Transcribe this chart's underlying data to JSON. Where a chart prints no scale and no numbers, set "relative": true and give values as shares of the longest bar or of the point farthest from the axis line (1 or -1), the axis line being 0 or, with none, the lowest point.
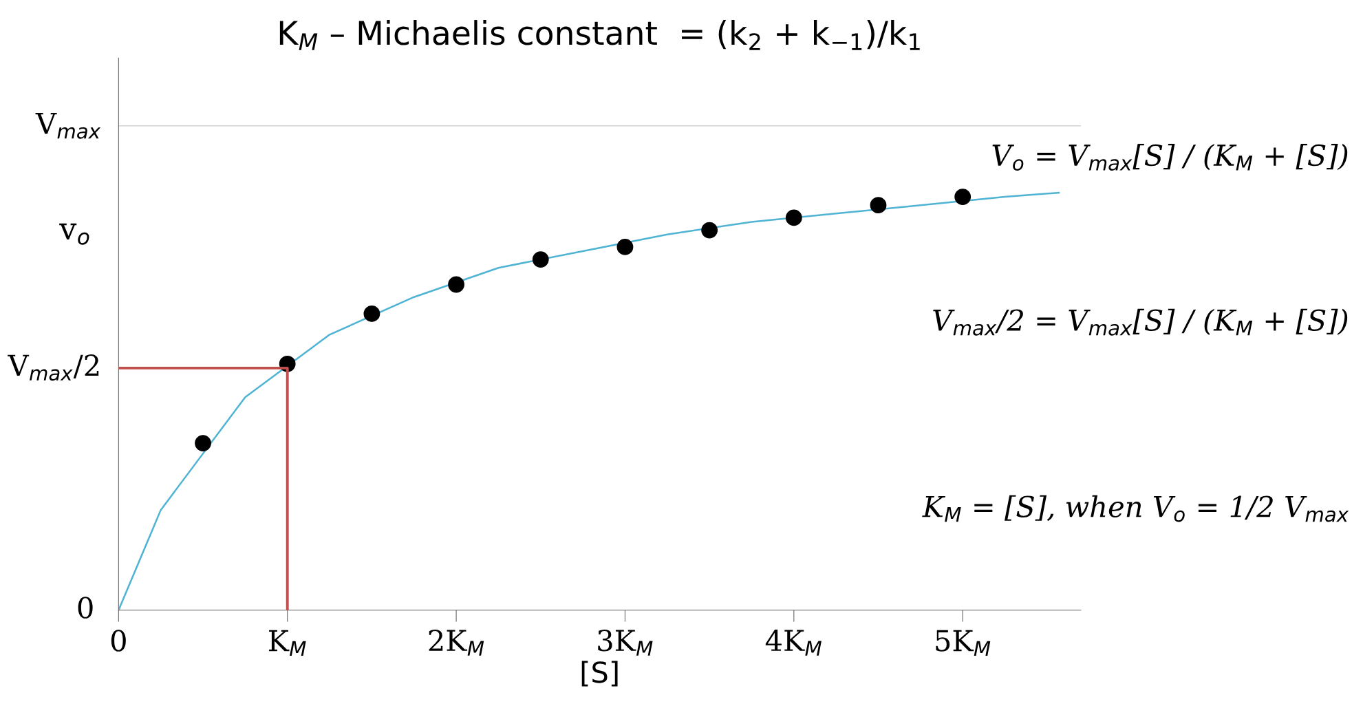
{
  "chart_data": {
    "type": "line",
    "title": "K$_{M}$ – Michaelis constant  = (k$_{2}$ + k$_{−1}$)/k$_{1}$",
    "xlabel": "[S]",
    "ylabel": "v$_{o}$",
    "relative": true,
    "xlim": [
      0,
      5.7
    ],
    "xticks": [
      0,
      {
        "value": 1,
        "label": "K$_{M}$"
      },
      {
        "value": 2,
        "label": "2K$_{M}$"
      },
      {
        "value": 3,
        "label": "3K$_{M}$"
      },
      {
        "value": 4,
        "label": "4K$_{M}$"
      },
      {
        "value": 5,
        "label": "5K$_{M}$"
      }
    ],
    "tick_labels": "x",
    "grid": false,
    "series": [
      {
        "color": "#4fb3d4",
        "x": [
          0,
          0.25,
          0.75,
          1.25,
          1.75,
          2.25,
          2.75,
          3.25,
          3.75,
          4.25,
          4.75,
          5.25,
          5.57
        ],
        "values": [
          0,
          0.24,
          0.51,
          0.66,
          0.75,
          0.82,
          0.86,
          0.9,
          0.93,
          0.95,
          0.97,
          0.99,
          1
        ]
      },
      {
        "type": "scatter",
        "color": "#000000",
        "marker": "circle",
        "x": [
          0.5,
          1,
          1.5,
          2,
          2.5,
          3,
          3.5,
          4,
          4.5,
          5
        ],
        "values": [
          0.4,
          0.59,
          0.71,
          0.78,
          0.84,
          0.87,
          0.91,
          0.94,
          0.97,
          0.99
        ]
      },
      {
        "name": "V$_{max}$/2",
        "color": "#c0504d",
        "x": [
          0,
          1,
          1
        ],
        "values": [
          0.58,
          0.58,
          0
        ]
      }
    ],
    "ref_lines": [
      {
        "axis": "y",
        "value": 1.16,
        "color": "#d9d9d9",
        "label": "V$_{max}$"
      }
    ],
    "annotations": [
      "0",
      "V$_{o}$ = V$_{max}$[S] / (K$_{M}$ + [S])",
      "V$_{max}$/2 = V$_{max}$[S] / (K$_{M}$ + [S])",
      "K$_{M}$ = [S], when V$_{o}$ = 1/2 V$_{max}$"
    ]
  }
}
